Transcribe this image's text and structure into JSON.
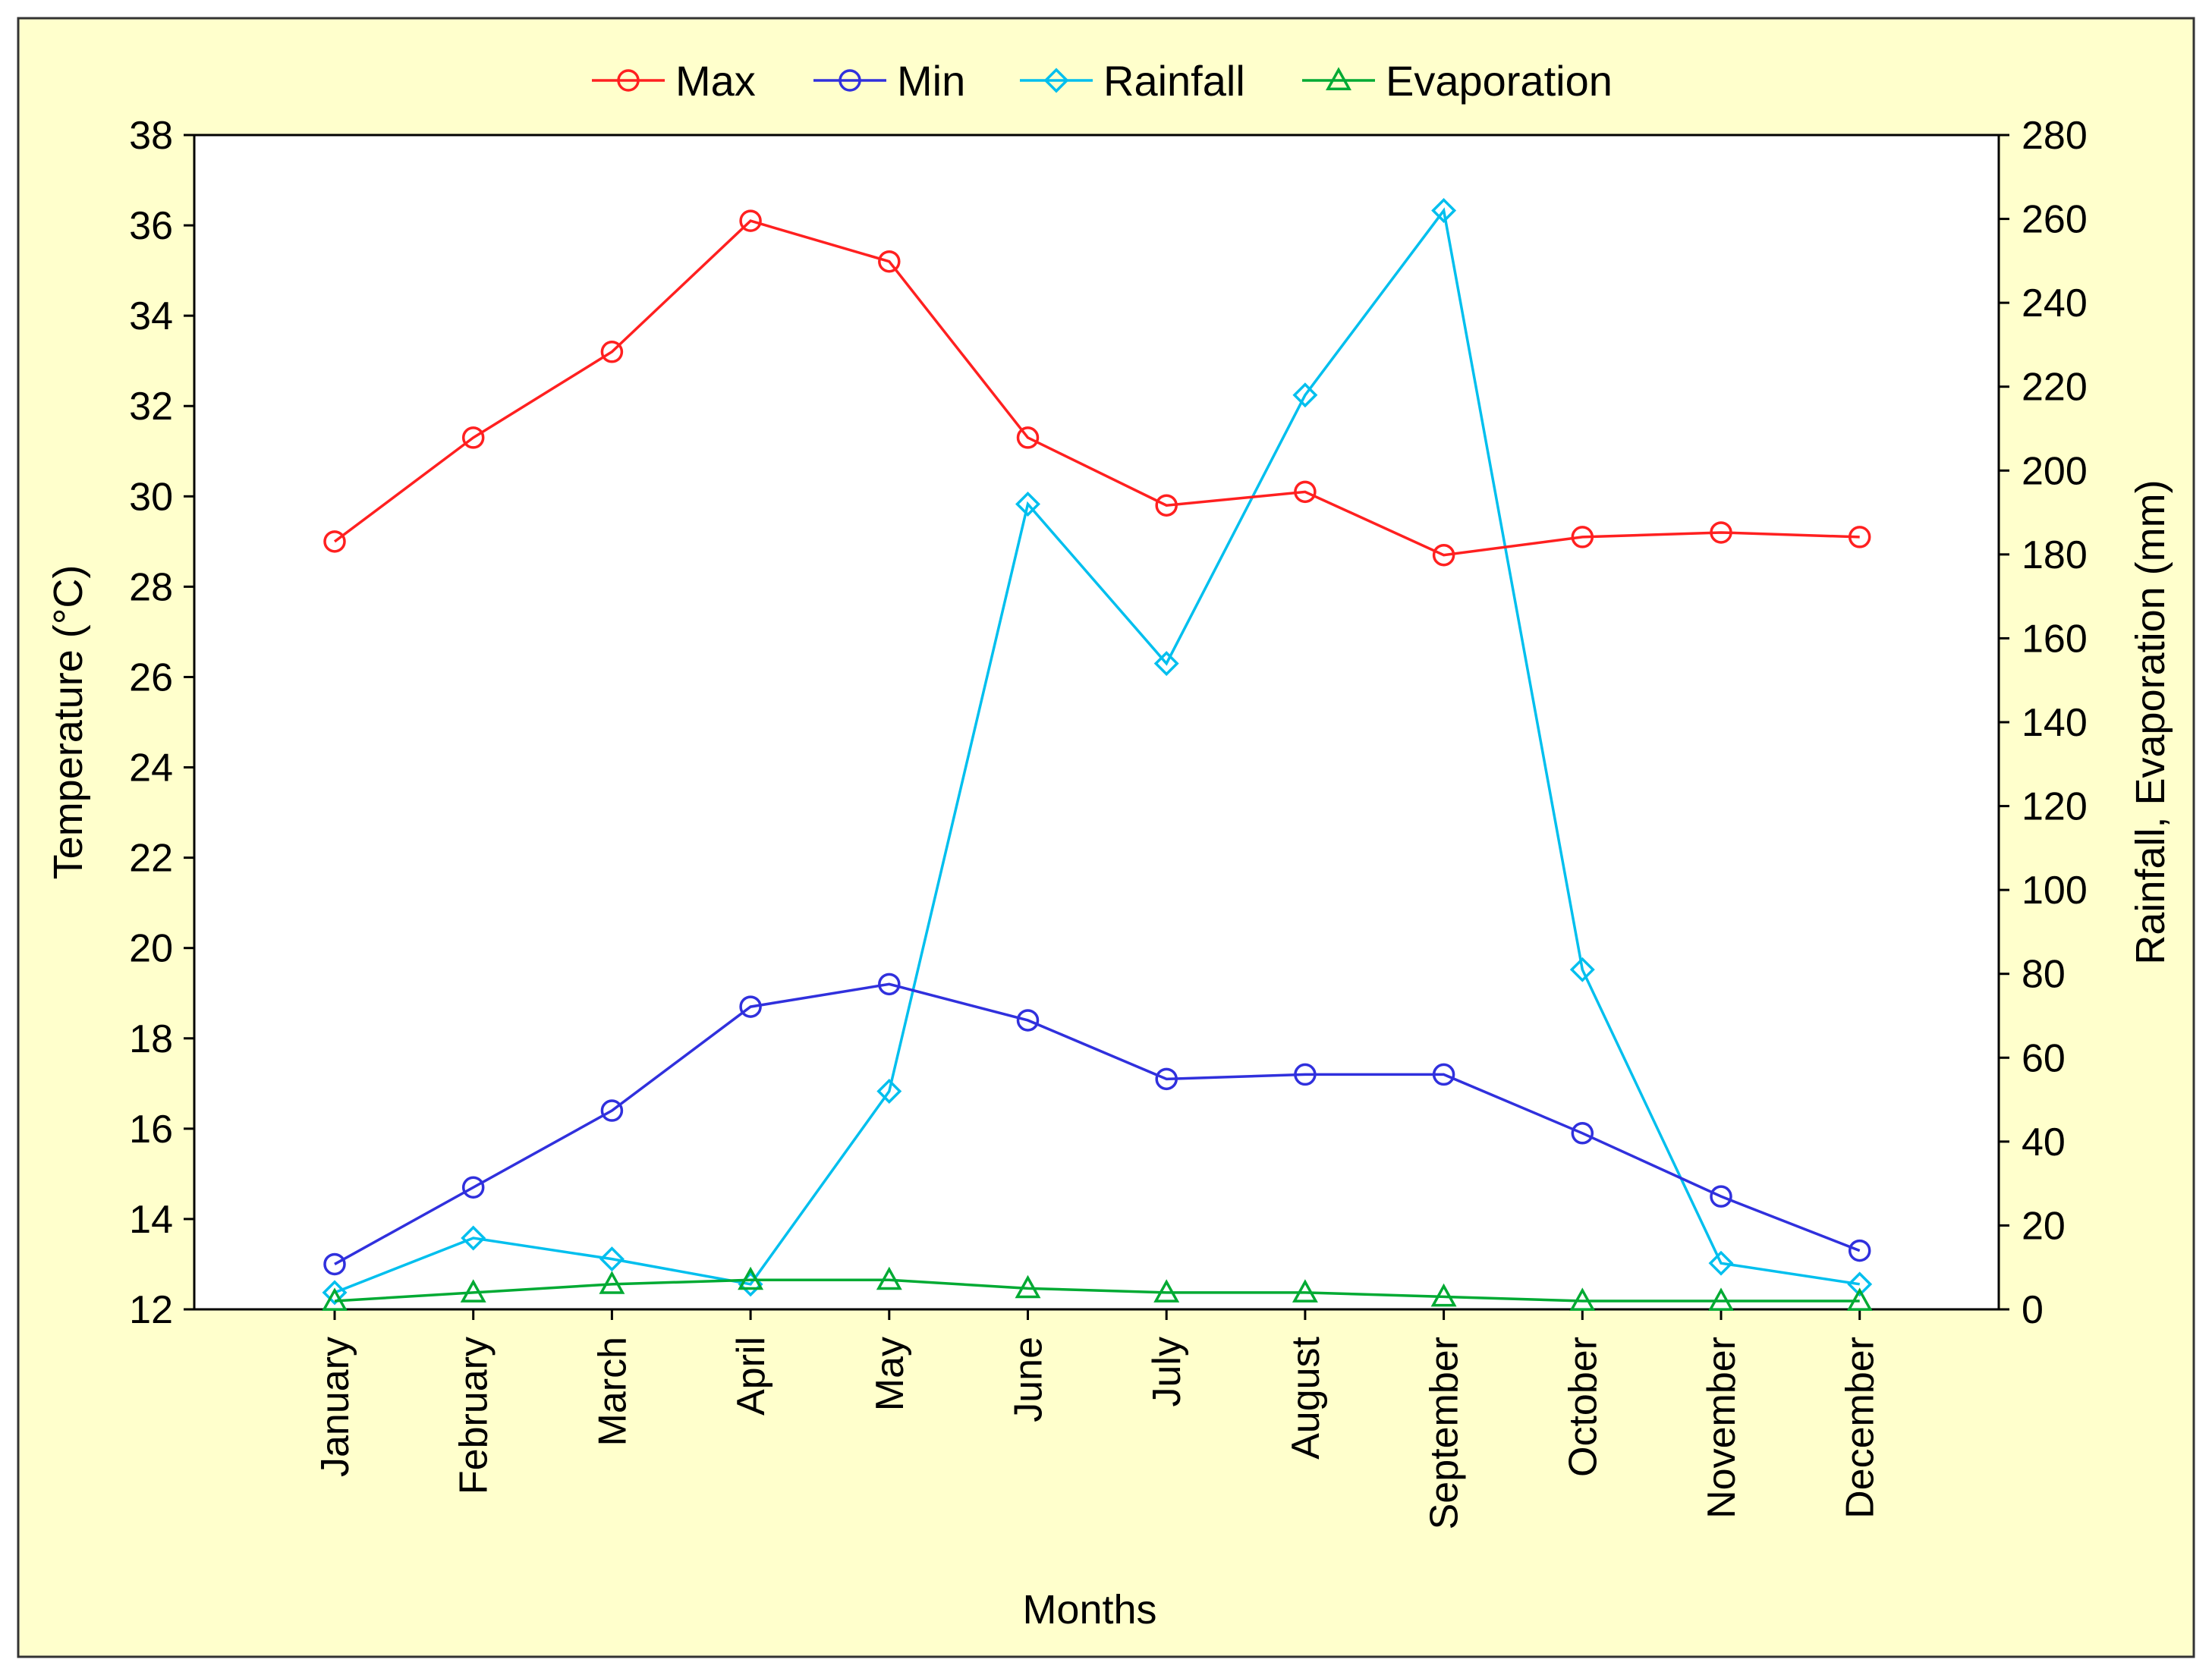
{
  "chart_data": {
    "type": "line",
    "title": "",
    "xlabel": "Months",
    "ylabel_left": "Temperature (°C)",
    "ylabel_right": "Rainfall, Evaporation (mm)",
    "categories": [
      "January",
      "February",
      "March",
      "April",
      "May",
      "June",
      "July",
      "August",
      "September",
      "October",
      "November",
      "December"
    ],
    "y_left": {
      "min": 12,
      "max": 38,
      "ticks": [
        12,
        14,
        16,
        18,
        20,
        22,
        24,
        26,
        28,
        30,
        32,
        34,
        36,
        38
      ]
    },
    "y_right": {
      "min": 0,
      "max": 280,
      "ticks": [
        0,
        20,
        40,
        60,
        80,
        100,
        120,
        140,
        160,
        180,
        200,
        220,
        240,
        260,
        280
      ]
    },
    "legend_position": "top",
    "series": [
      {
        "name": "Max",
        "axis": "left",
        "color": "#ff2020",
        "marker": "circle",
        "values": [
          29.0,
          31.3,
          33.2,
          36.1,
          35.2,
          31.3,
          29.8,
          30.1,
          28.7,
          29.1,
          29.2,
          29.1
        ]
      },
      {
        "name": "Min",
        "axis": "left",
        "color": "#3030dd",
        "marker": "circle",
        "values": [
          13.0,
          14.7,
          16.4,
          18.7,
          19.2,
          18.4,
          17.1,
          17.2,
          17.2,
          15.9,
          14.5,
          13.3
        ]
      },
      {
        "name": "Rainfall",
        "axis": "right",
        "color": "#00bfee",
        "marker": "diamond",
        "values": [
          4,
          17,
          12,
          6,
          52,
          192,
          154,
          218,
          262,
          81,
          11,
          6
        ]
      },
      {
        "name": "Evaporation",
        "axis": "right",
        "color": "#00aa33",
        "marker": "triangle",
        "values": [
          2,
          4,
          6,
          7,
          7,
          5,
          4,
          4,
          3,
          2,
          2,
          2
        ]
      }
    ]
  }
}
